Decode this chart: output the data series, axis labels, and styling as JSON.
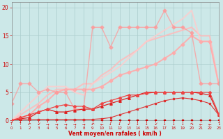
{
  "xlabel": "Vent moyen/en rafales ( km/h )",
  "background_color": "#cce8e8",
  "grid_color": "#aacccc",
  "x_ticks": [
    0,
    1,
    2,
    3,
    4,
    5,
    6,
    7,
    8,
    9,
    10,
    11,
    12,
    13,
    14,
    15,
    16,
    17,
    18,
    19,
    20,
    21,
    22,
    23
  ],
  "ylim": [
    0,
    21
  ],
  "xlim": [
    0,
    23
  ],
  "yticks": [
    0,
    5,
    10,
    15,
    20
  ],
  "series": [
    {
      "x": [
        0,
        1,
        2,
        3,
        4,
        5,
        6,
        7,
        8,
        9,
        10,
        11,
        12,
        13,
        14,
        15,
        16,
        17,
        18,
        19,
        20,
        21,
        22,
        23
      ],
      "y": [
        0,
        0,
        0,
        0,
        0,
        0,
        0,
        0,
        0,
        0,
        0,
        0,
        0,
        0,
        0,
        0,
        0,
        0,
        0,
        0,
        0,
        0,
        0,
        0
      ],
      "color": "#cc0000",
      "lw": 0.8,
      "marker": "s",
      "ms": 1.5,
      "alpha": 1.0,
      "zorder": 3
    },
    {
      "x": [
        0,
        1,
        2,
        3,
        4,
        5,
        6,
        7,
        8,
        9,
        10,
        11,
        12,
        13,
        14,
        15,
        16,
        17,
        18,
        19,
        20,
        21,
        22,
        23
      ],
      "y": [
        0,
        0.1,
        0.1,
        0.2,
        0.2,
        0.2,
        0.2,
        0.2,
        0.2,
        0.2,
        0.3,
        0.5,
        1.0,
        1.5,
        2.0,
        2.5,
        3.0,
        3.5,
        3.8,
        4.0,
        3.8,
        3.5,
        3.0,
        1.0
      ],
      "color": "#dd3333",
      "lw": 0.8,
      "marker": "s",
      "ms": 1.5,
      "alpha": 1.0,
      "zorder": 3
    },
    {
      "x": [
        0,
        1,
        2,
        3,
        4,
        5,
        6,
        7,
        8,
        9,
        10,
        11,
        12,
        13,
        14,
        15,
        16,
        17,
        18,
        19,
        20,
        21,
        22,
        23
      ],
      "y": [
        0,
        0.3,
        0.5,
        1.5,
        2.0,
        1.5,
        1.5,
        1.8,
        2.0,
        2.0,
        2.5,
        3.0,
        3.5,
        4.0,
        4.5,
        5.0,
        5.0,
        5.0,
        5.0,
        5.0,
        5.0,
        4.8,
        4.5,
        1.0
      ],
      "color": "#dd2222",
      "lw": 0.9,
      "marker": "^",
      "ms": 2.5,
      "alpha": 1.0,
      "zorder": 3
    },
    {
      "x": [
        0,
        1,
        2,
        3,
        4,
        5,
        6,
        7,
        8,
        9,
        10,
        11,
        12,
        13,
        14,
        15,
        16,
        17,
        18,
        19,
        20,
        21,
        22,
        23
      ],
      "y": [
        0,
        0.5,
        1.0,
        1.5,
        2.0,
        2.5,
        2.8,
        2.5,
        2.5,
        2.0,
        3.0,
        3.5,
        4.0,
        4.5,
        4.5,
        4.8,
        5.0,
        5.0,
        5.0,
        5.0,
        5.0,
        5.0,
        5.0,
        1.2
      ],
      "color": "#ee4444",
      "lw": 0.9,
      "marker": "D",
      "ms": 2.0,
      "alpha": 1.0,
      "zorder": 3
    },
    {
      "x": [
        0,
        1,
        2,
        3,
        4,
        5,
        6,
        7,
        8,
        9,
        10,
        11,
        12,
        13,
        14,
        15,
        16,
        17,
        18,
        19,
        20,
        21,
        22,
        23
      ],
      "y": [
        0,
        0.5,
        1.0,
        2.5,
        3.5,
        5.0,
        5.5,
        5.5,
        5.5,
        5.5,
        6.0,
        7.0,
        8.0,
        8.5,
        9.0,
        9.5,
        10.0,
        11.0,
        12.0,
        13.5,
        15.0,
        14.0,
        14.0,
        6.5
      ],
      "color": "#ffaaaa",
      "lw": 1.4,
      "marker": "D",
      "ms": 2.5,
      "alpha": 0.9,
      "zorder": 2
    },
    {
      "x": [
        0,
        1,
        2,
        3,
        4,
        5,
        6,
        7,
        8,
        9,
        10,
        11,
        12,
        13,
        14,
        15,
        16,
        17,
        18,
        19,
        20,
        21,
        22,
        23
      ],
      "y": [
        0,
        1.0,
        2.0,
        3.0,
        4.5,
        5.5,
        5.5,
        5.5,
        6.5,
        6.5,
        8.0,
        9.0,
        10.5,
        11.5,
        12.5,
        14.0,
        14.5,
        15.0,
        15.5,
        16.0,
        16.5,
        15.0,
        15.0,
        6.5
      ],
      "color": "#ffbbbb",
      "lw": 1.5,
      "marker": null,
      "ms": 0,
      "alpha": 0.85,
      "zorder": 1
    },
    {
      "x": [
        0,
        1,
        2,
        3,
        4,
        5,
        6,
        7,
        8,
        9,
        10,
        11,
        12,
        13,
        14,
        15,
        16,
        17,
        18,
        19,
        20,
        21,
        22,
        23
      ],
      "y": [
        0,
        1.5,
        3.0,
        4.5,
        6.0,
        6.0,
        6.0,
        5.0,
        4.5,
        6.5,
        7.5,
        8.5,
        9.5,
        11.0,
        12.5,
        14.0,
        15.0,
        16.0,
        17.0,
        18.0,
        19.5,
        14.0,
        14.0,
        6.5
      ],
      "color": "#ffcccc",
      "lw": 1.5,
      "marker": null,
      "ms": 0,
      "alpha": 0.8,
      "zorder": 1
    },
    {
      "x": [
        0,
        1,
        2,
        3,
        4,
        5,
        6,
        7,
        8,
        9,
        10,
        11,
        12,
        13,
        14,
        15,
        16,
        17,
        18,
        19,
        20,
        21,
        22,
        23
      ],
      "y": [
        3.0,
        6.5,
        6.5,
        5.0,
        5.5,
        5.0,
        5.0,
        2.0,
        2.0,
        16.5,
        16.5,
        13.0,
        16.5,
        16.5,
        16.5,
        16.5,
        16.5,
        19.5,
        16.5,
        16.5,
        15.5,
        6.5,
        6.5,
        6.5
      ],
      "color": "#ff9999",
      "lw": 1.0,
      "marker": "D",
      "ms": 2.5,
      "alpha": 0.75,
      "zorder": 2
    }
  ],
  "wind_arrows": [
    "↑",
    "↑",
    "↶",
    "↙",
    "→",
    "→",
    "→",
    "→",
    "→",
    "↶",
    "←",
    "↓",
    "↓",
    "↙",
    "↓",
    "↓",
    "↙",
    "↓",
    "↓",
    "↓",
    "↷",
    "←",
    "←",
    "↴"
  ]
}
